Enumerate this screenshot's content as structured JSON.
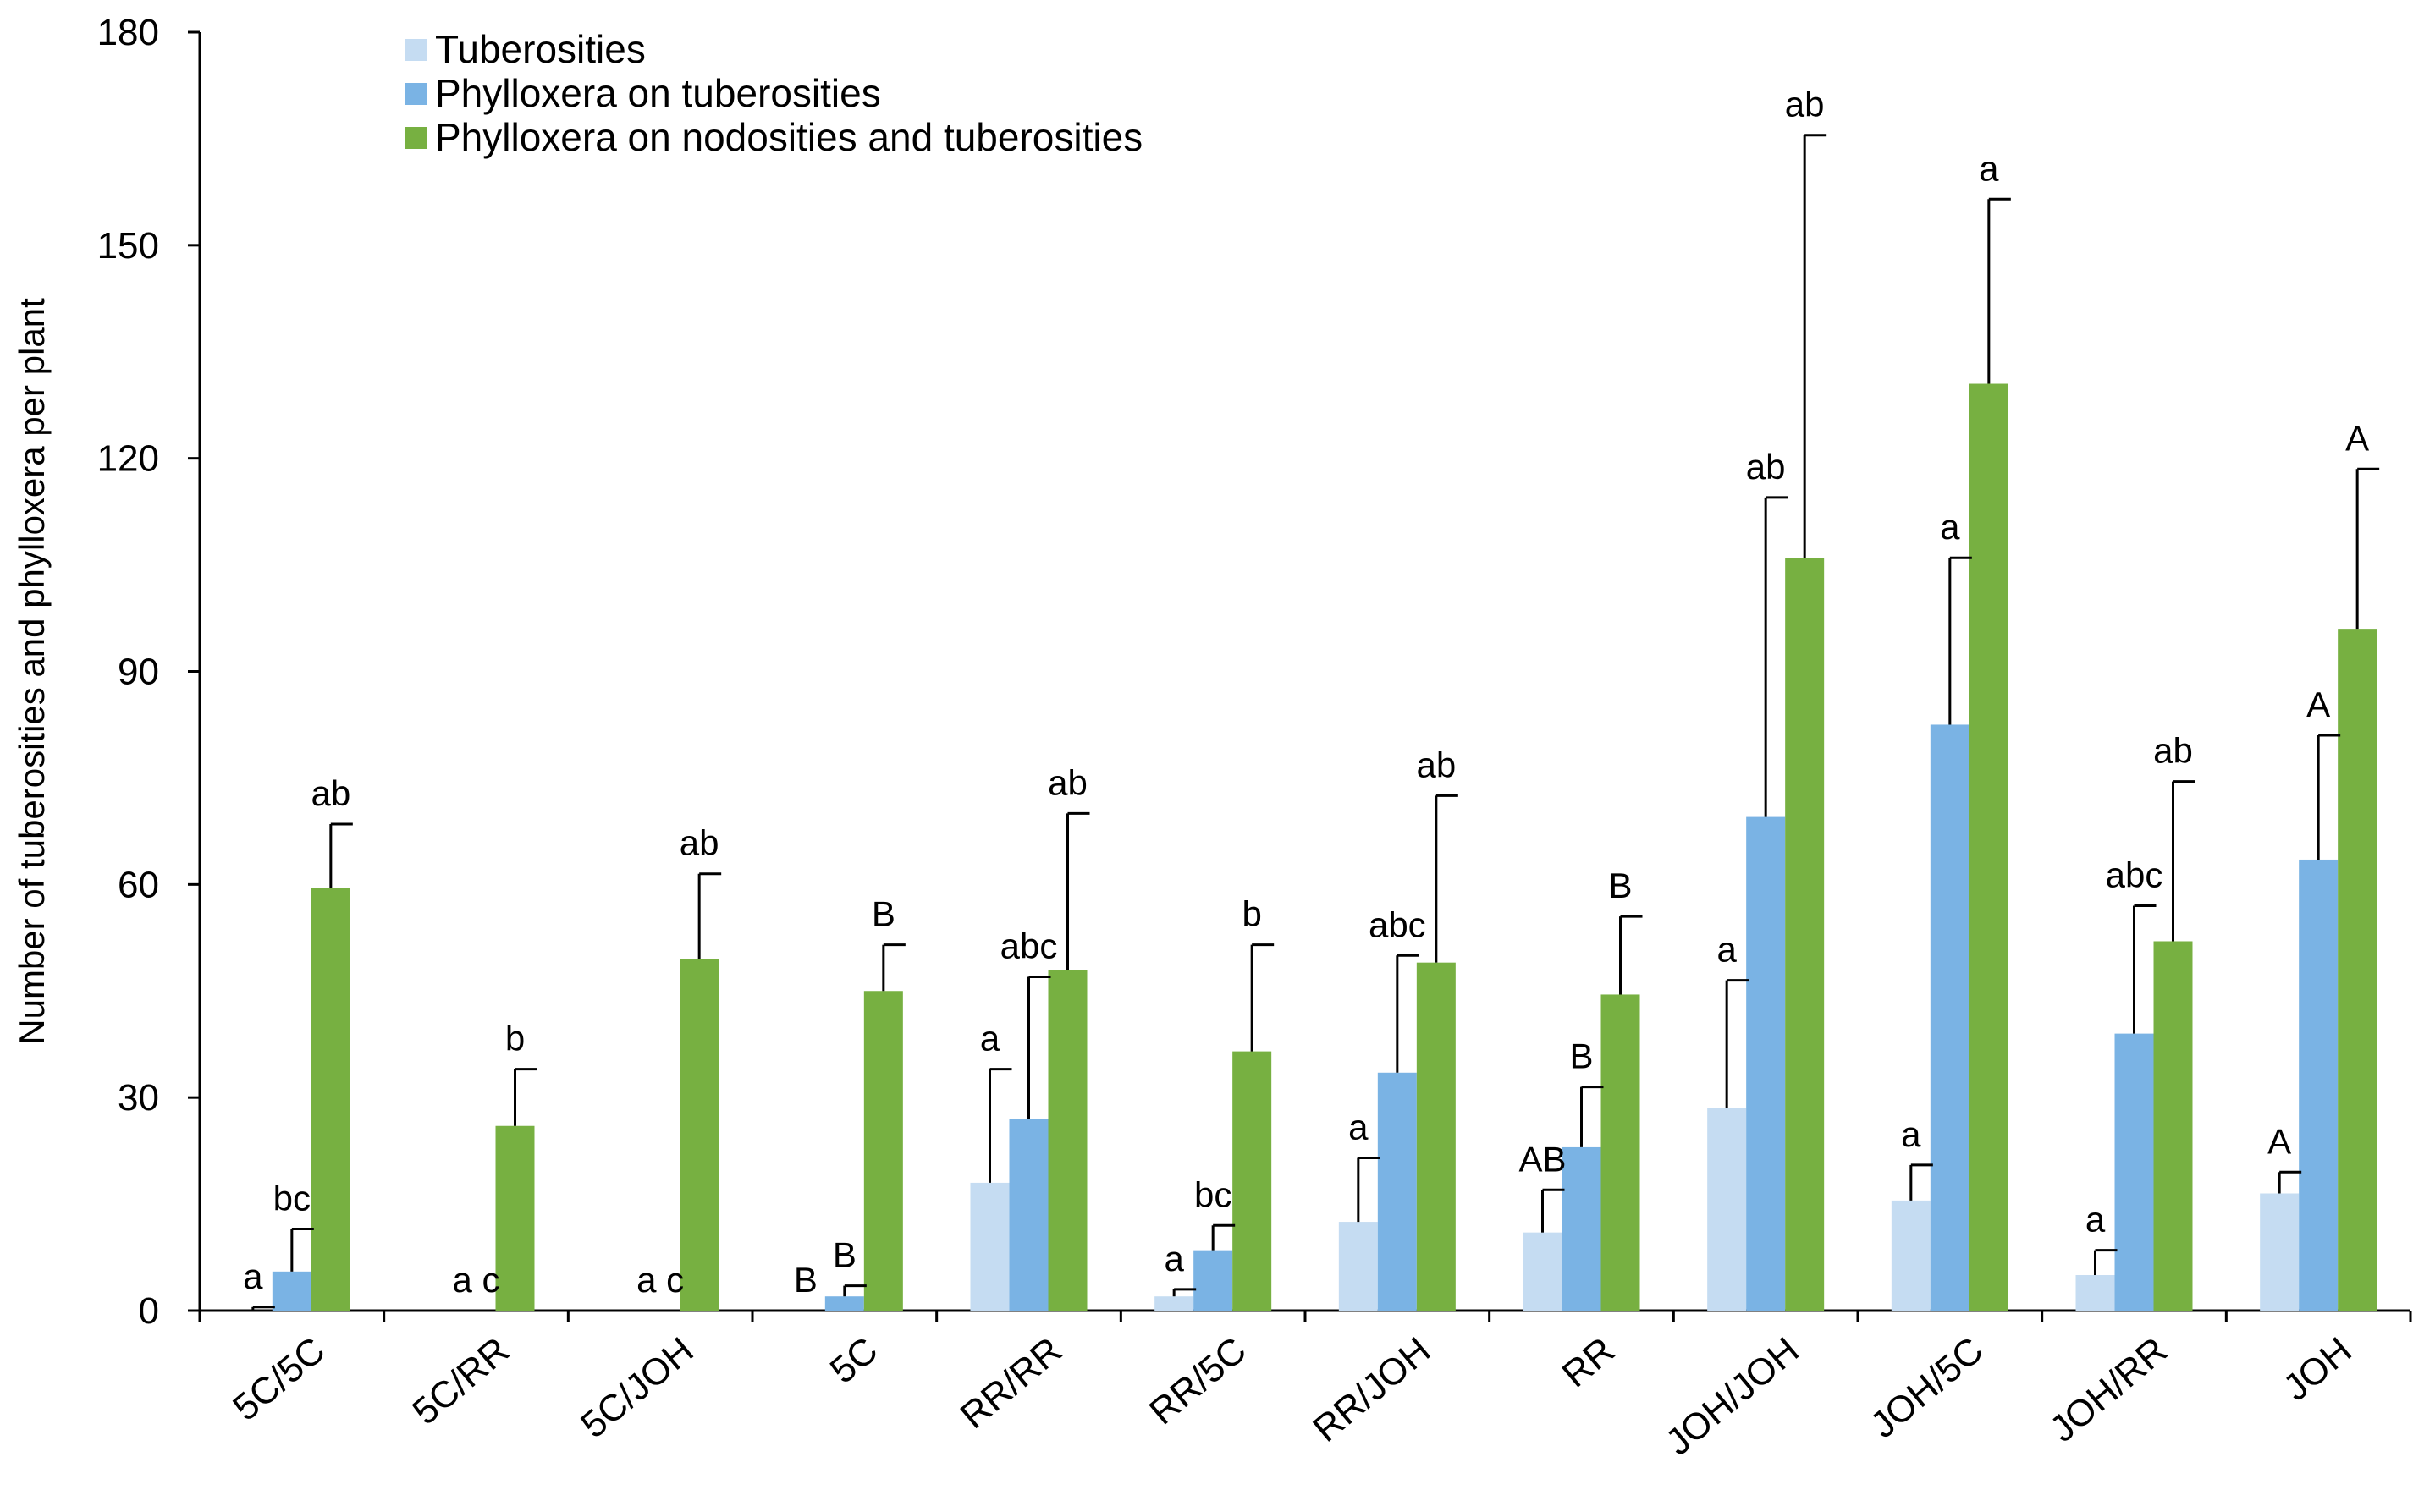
{
  "chart_data": {
    "type": "bar",
    "title": "",
    "xlabel": "",
    "ylabel": "Number of tuberosities and phylloxera per plant",
    "ylim": [
      0,
      180
    ],
    "yticks": [
      "0",
      "30",
      "60",
      "90",
      "120",
      "150",
      "180"
    ],
    "categories": [
      "5C/5C",
      "5C/RR",
      "5C/JOH",
      "5C",
      "RR/RR",
      "RR/5C",
      "RR/JOH",
      "RR",
      "JOH/JOH",
      "JOH/5C",
      "JOH/RR",
      "JOH"
    ],
    "legend_position": "top-left",
    "series": [
      {
        "name": "Tuberosities",
        "color": "#c5dcf2",
        "values": [
          0,
          0,
          0,
          0,
          18,
          2,
          12.5,
          11,
          28.5,
          15.5,
          5,
          16.5
        ],
        "errors": [
          0.5,
          0,
          0,
          0,
          16,
          1,
          9,
          6,
          18,
          5,
          3.5,
          3
        ],
        "labels": [
          "a",
          "",
          "",
          "B",
          "a",
          "a",
          "a",
          "AB",
          "a",
          "a",
          "a",
          "A"
        ]
      },
      {
        "name": "Phylloxera on tuberosities",
        "color": "#7ab3e4",
        "values": [
          5.5,
          0,
          0,
          2,
          27,
          8.5,
          33.5,
          23,
          69.5,
          82.5,
          39,
          63.5
        ],
        "errors": [
          6,
          0,
          0,
          1.5,
          20,
          3.5,
          16.5,
          8.5,
          45,
          23.5,
          18,
          17.5
        ],
        "labels": [
          "bc",
          "a c",
          "a c",
          "B",
          "abc",
          "bc",
          "abc",
          "B",
          "ab",
          "a",
          "abc",
          "A"
        ]
      },
      {
        "name": "Phylloxera on nodosities and  tuberosities",
        "color": "#77b041",
        "values": [
          59.5,
          26,
          49.5,
          45,
          48,
          36.5,
          49,
          44.5,
          106,
          130.5,
          52,
          96
        ],
        "errors": [
          9,
          8,
          12,
          6.5,
          22,
          15,
          23.5,
          11,
          59.5,
          26,
          22.5,
          22.5
        ],
        "labels": [
          "ab",
          "b",
          "ab",
          "B",
          "ab",
          "b",
          "ab",
          "B",
          "ab",
          "a",
          "ab",
          "A"
        ]
      }
    ]
  }
}
